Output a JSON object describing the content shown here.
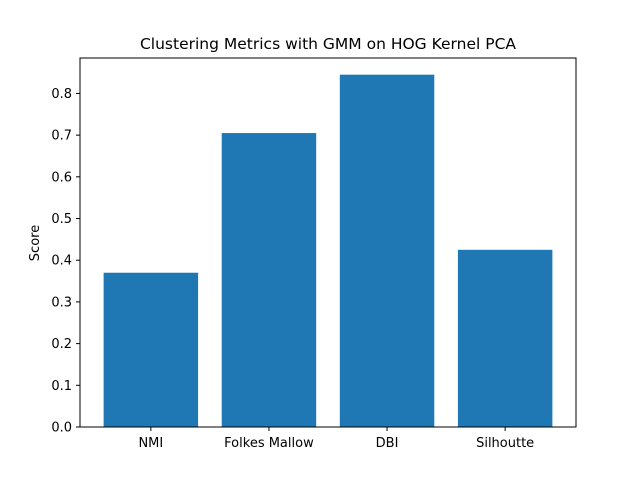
{
  "chart_data": {
    "type": "bar",
    "title": "Clustering Metrics with GMM on HOG Kernel PCA",
    "xlabel": "",
    "ylabel": "Score",
    "categories": [
      "NMI",
      "Folkes Mallow",
      "DBI",
      "Silhoutte"
    ],
    "values": [
      0.37,
      0.705,
      0.845,
      0.425
    ],
    "ylim": [
      0,
      0.885
    ],
    "yticks": [
      0.0,
      0.1,
      0.2,
      0.3,
      0.4,
      0.5,
      0.6,
      0.7,
      0.8
    ],
    "ytick_labels": [
      "0.0",
      "0.1",
      "0.2",
      "0.3",
      "0.4",
      "0.5",
      "0.6",
      "0.7",
      "0.8"
    ],
    "grid": false,
    "bar_color": "#1f77b4"
  }
}
